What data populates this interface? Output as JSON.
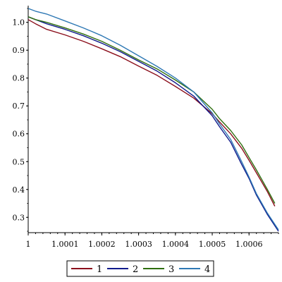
{
  "chart_data": {
    "type": "line",
    "title": "",
    "xlabel": "",
    "ylabel": "",
    "xlim": [
      1.0,
      1.00068
    ],
    "ylim": [
      0.245,
      1.06
    ],
    "grid": false,
    "legend_position": "bottom",
    "x_ticks": [
      {
        "value": 1.0,
        "label": "1"
      },
      {
        "value": 1.0001,
        "label": "1.0001"
      },
      {
        "value": 1.0002,
        "label": "1.0002"
      },
      {
        "value": 1.0003,
        "label": "1.0003"
      },
      {
        "value": 1.0004,
        "label": "1.0004"
      },
      {
        "value": 1.0005,
        "label": "1.0005"
      },
      {
        "value": 1.0006,
        "label": "1.0006"
      }
    ],
    "y_ticks": [
      {
        "value": 0.3,
        "label": "0.3"
      },
      {
        "value": 0.4,
        "label": "0.4"
      },
      {
        "value": 0.5,
        "label": "0.5"
      },
      {
        "value": 0.6,
        "label": "0.6"
      },
      {
        "value": 0.7,
        "label": "0.7"
      },
      {
        "value": 0.8,
        "label": "0.8"
      },
      {
        "value": 0.9,
        "label": "0.9"
      },
      {
        "value": 1.0,
        "label": "1.0"
      }
    ],
    "series": [
      {
        "name": "1",
        "color": "#8b0f1c",
        "x": [
          1.0,
          1.00002,
          1.00005,
          1.0001,
          1.00015,
          1.0002,
          1.00025,
          1.0003,
          1.00035,
          1.0004,
          1.00045,
          1.0005,
          1.00052,
          1.00055,
          1.00058,
          1.0006,
          1.00062,
          1.00065,
          1.00067
        ],
        "y": [
          1.01,
          0.995,
          0.975,
          0.955,
          0.932,
          0.905,
          0.877,
          0.843,
          0.81,
          0.77,
          0.728,
          0.672,
          0.642,
          0.6,
          0.548,
          0.505,
          0.46,
          0.392,
          0.34
        ]
      },
      {
        "name": "2",
        "color": "#101a8c",
        "x": [
          1.0,
          1.00002,
          1.00005,
          1.0001,
          1.00015,
          1.0002,
          1.00025,
          1.0003,
          1.00035,
          1.0004,
          1.00045,
          1.0005,
          1.00052,
          1.00055,
          1.00058,
          1.0006,
          1.00062,
          1.00065,
          1.00068
        ],
        "y": [
          1.02,
          1.01,
          0.995,
          0.975,
          0.952,
          0.925,
          0.895,
          0.86,
          0.825,
          0.783,
          0.735,
          0.665,
          0.625,
          0.57,
          0.49,
          0.44,
          0.38,
          0.31,
          0.25
        ]
      },
      {
        "name": "3",
        "color": "#2e6e0f",
        "x": [
          1.0,
          1.00002,
          1.00005,
          1.0001,
          1.00015,
          1.0002,
          1.00025,
          1.0003,
          1.00035,
          1.0004,
          1.00045,
          1.0005,
          1.00052,
          1.00055,
          1.00058,
          1.0006,
          1.00062,
          1.00065,
          1.00067
        ],
        "y": [
          1.02,
          1.01,
          1.0,
          0.98,
          0.958,
          0.932,
          0.9,
          0.865,
          0.833,
          0.793,
          0.75,
          0.688,
          0.654,
          0.612,
          0.56,
          0.515,
          0.47,
          0.4,
          0.35
        ]
      },
      {
        "name": "4",
        "color": "#2e78b4",
        "x": [
          1.0,
          1.00002,
          1.00005,
          1.0001,
          1.00015,
          1.0002,
          1.00025,
          1.0003,
          1.00035,
          1.0004,
          1.00045,
          1.0005,
          1.00052,
          1.00055,
          1.00058,
          1.0006,
          1.00062,
          1.00065,
          1.00068
        ],
        "y": [
          1.05,
          1.04,
          1.03,
          1.005,
          0.98,
          0.952,
          0.918,
          0.88,
          0.842,
          0.8,
          0.75,
          0.675,
          0.635,
          0.58,
          0.5,
          0.445,
          0.385,
          0.315,
          0.255
        ]
      }
    ]
  }
}
